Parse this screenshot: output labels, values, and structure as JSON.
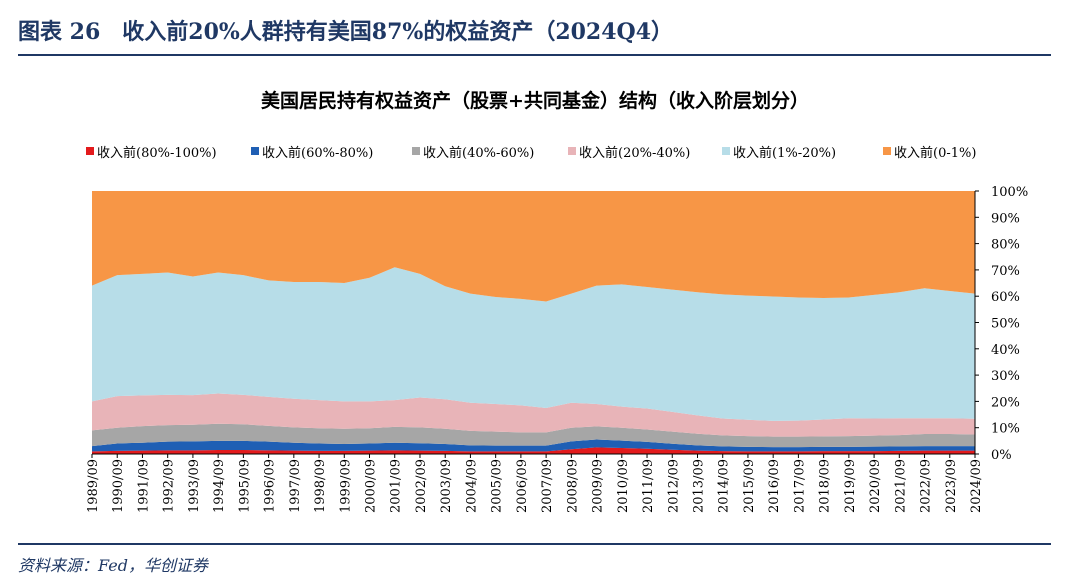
{
  "figure": {
    "title": "图表 26　收入前20%人群持有美国87%的权益资产（2024Q4）",
    "source": "资料来源：Fed，华创证券"
  },
  "chart_data": {
    "type": "area",
    "stacked": true,
    "normalized": true,
    "title": "美国居民持有权益资产（股票+共同基金）结构（收入阶层划分）",
    "legend_position": "top",
    "grid": false,
    "ylim": [
      0,
      100
    ],
    "y_ticks": [
      "0%",
      "10%",
      "20%",
      "30%",
      "40%",
      "50%",
      "60%",
      "70%",
      "80%",
      "90%",
      "100%"
    ],
    "x_ticks": [
      "1989/09",
      "1990/09",
      "1991/09",
      "1992/09",
      "1993/09",
      "1994/09",
      "1995/09",
      "1996/09",
      "1997/09",
      "1998/09",
      "1999/09",
      "2000/09",
      "2001/09",
      "2002/09",
      "2003/09",
      "2004/09",
      "2005/09",
      "2006/09",
      "2007/09",
      "2008/09",
      "2009/09",
      "2010/09",
      "2011/09",
      "2012/09",
      "2013/09",
      "2014/09",
      "2015/09",
      "2016/09",
      "2017/09",
      "2018/09",
      "2019/09",
      "2020/09",
      "2021/09",
      "2022/09",
      "2023/09",
      "2024/09"
    ],
    "x": [
      "1989/09",
      "1990/09",
      "1991/09",
      "1992/09",
      "1993/09",
      "1994/09",
      "1995/09",
      "1996/09",
      "1997/09",
      "1998/09",
      "1999/09",
      "2000/09",
      "2001/09",
      "2002/09",
      "2003/09",
      "2004/09",
      "2005/09",
      "2006/09",
      "2007/09",
      "2008/09",
      "2009/09",
      "2010/09",
      "2011/09",
      "2012/09",
      "2013/09",
      "2014/09",
      "2015/09",
      "2016/09",
      "2017/09",
      "2018/09",
      "2019/09",
      "2020/09",
      "2021/09",
      "2022/09",
      "2023/09",
      "2024/09"
    ],
    "series": [
      {
        "name": "收入前(80%-100%)",
        "color": "#e31a1c",
        "values": [
          1.0,
          1.2,
          1.3,
          1.4,
          1.4,
          1.5,
          1.5,
          1.4,
          1.3,
          1.2,
          1.2,
          1.3,
          1.4,
          1.3,
          1.2,
          1.0,
          1.0,
          1.0,
          1.0,
          1.8,
          2.5,
          2.3,
          2.0,
          1.6,
          1.3,
          1.1,
          1.0,
          1.0,
          1.0,
          1.1,
          1.1,
          1.1,
          1.2,
          1.3,
          1.3,
          1.3
        ]
      },
      {
        "name": "收入前(60%-80%)",
        "color": "#1f5fb4",
        "values": [
          2.0,
          2.8,
          3.0,
          3.3,
          3.4,
          3.5,
          3.5,
          3.3,
          3.0,
          2.8,
          2.6,
          2.7,
          2.9,
          2.8,
          2.6,
          2.3,
          2.2,
          2.2,
          2.2,
          3.0,
          3.0,
          2.8,
          2.6,
          2.3,
          2.0,
          1.8,
          1.7,
          1.6,
          1.6,
          1.6,
          1.6,
          1.7,
          1.7,
          1.7,
          1.7,
          1.7
        ]
      },
      {
        "name": "收入前(40%-60%)",
        "color": "#a6a6a6",
        "values": [
          6.0,
          6.0,
          6.3,
          6.3,
          6.3,
          6.5,
          6.3,
          6.0,
          5.8,
          5.8,
          5.8,
          5.8,
          6.0,
          6.0,
          5.8,
          5.5,
          5.3,
          5.0,
          5.0,
          5.2,
          5.0,
          4.9,
          4.7,
          4.6,
          4.4,
          4.2,
          4.1,
          4.0,
          4.0,
          4.0,
          4.1,
          4.2,
          4.3,
          4.6,
          4.6,
          4.4
        ]
      },
      {
        "name": "收入前(20%-40%)",
        "color": "#e8b4b8",
        "values": [
          11.0,
          12.0,
          11.7,
          11.5,
          11.3,
          11.5,
          11.2,
          11.0,
          10.9,
          10.7,
          10.4,
          10.2,
          10.2,
          11.4,
          11.2,
          10.7,
          10.5,
          10.3,
          9.3,
          9.5,
          8.5,
          8.0,
          8.0,
          7.5,
          7.0,
          6.4,
          6.2,
          6.0,
          6.1,
          6.4,
          6.8,
          6.5,
          6.4,
          6.0,
          6.0,
          6.0
        ]
      },
      {
        "name": "收入前(1%-20%)",
        "color": "#b7dde8",
        "values": [
          44.0,
          46.0,
          46.2,
          46.5,
          45.1,
          46.0,
          45.5,
          44.3,
          44.4,
          44.9,
          45.0,
          47.0,
          50.5,
          47.0,
          43.0,
          41.5,
          40.7,
          40.5,
          40.5,
          41.5,
          45.0,
          46.5,
          46.2,
          46.5,
          46.8,
          47.2,
          47.2,
          47.3,
          46.8,
          46.2,
          45.9,
          47.0,
          47.9,
          49.4,
          48.4,
          47.6
        ]
      },
      {
        "name": "收入前(0-1%)",
        "color": "#f79646",
        "values": [
          36.0,
          32.0,
          31.5,
          31.0,
          32.5,
          31.0,
          32.0,
          34.0,
          34.6,
          34.6,
          35.0,
          33.0,
          29.0,
          31.5,
          36.2,
          39.0,
          40.3,
          41.0,
          42.0,
          39.0,
          36.0,
          35.5,
          36.5,
          37.5,
          38.5,
          39.3,
          39.8,
          40.1,
          40.5,
          40.7,
          40.5,
          39.5,
          38.5,
          37.0,
          38.0,
          39.0
        ]
      }
    ]
  }
}
